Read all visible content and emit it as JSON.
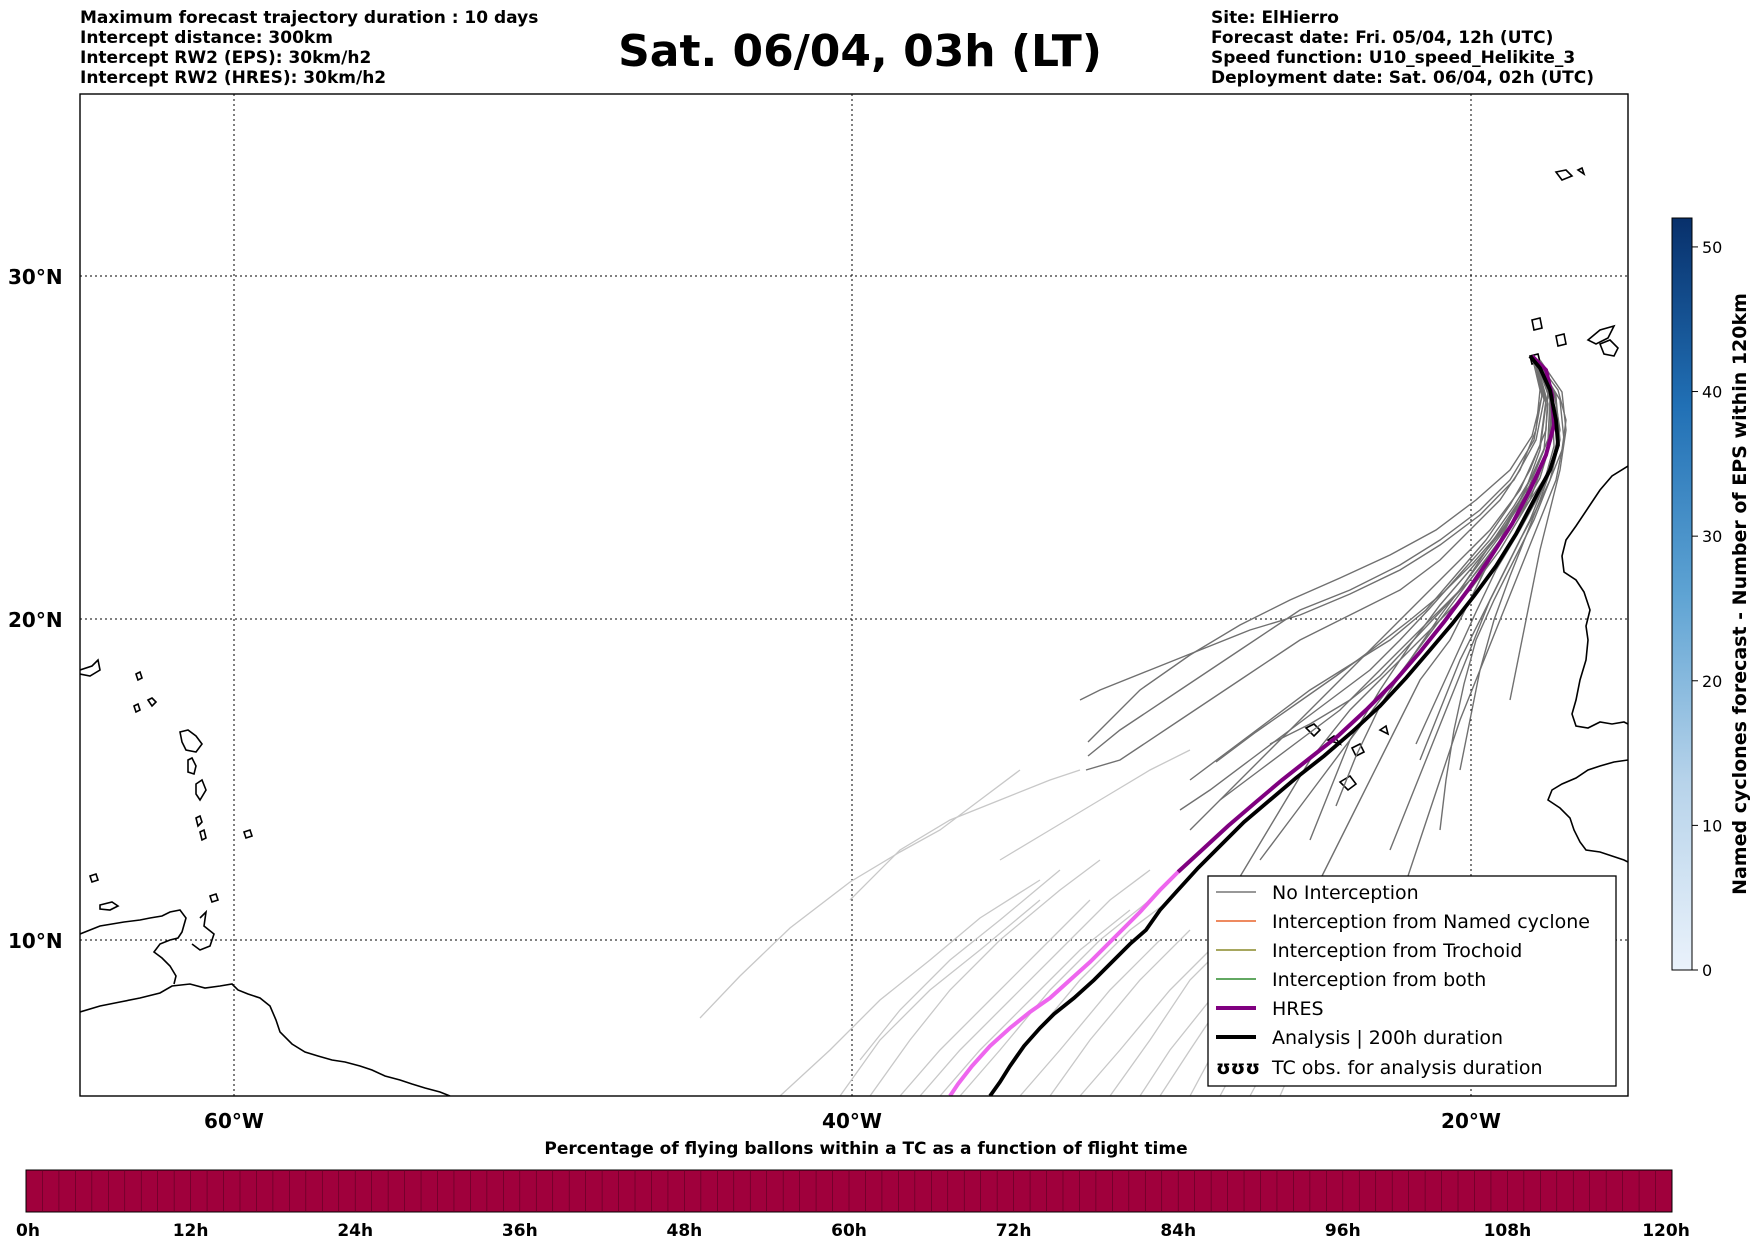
{
  "header": {
    "title": "Sat. 06/04, 03h (LT)",
    "left_lines": [
      "Maximum forecast trajectory duration : 10 days",
      "Intercept distance: 300km",
      "Intercept RW2 (EPS):  30km/h2",
      "Intercept RW2 (HRES): 30km/h2"
    ],
    "right_lines": [
      "Site: ElHierro",
      "Forecast date: Fri. 05/04, 12h (UTC)",
      "Speed function: U10_speed_Helikite_3",
      "Deployment date: Sat. 06/04, 02h (UTC)"
    ]
  },
  "map": {
    "lat_labels": [
      "30°N",
      "20°N",
      "10°N"
    ],
    "lon_labels": [
      "60°W",
      "40°W",
      "20°W"
    ]
  },
  "legend": {
    "items": [
      {
        "label": "No Interception",
        "color": "#777777"
      },
      {
        "label": "Interception from Named cyclone",
        "color": "#e8642c"
      },
      {
        "label": "Interception from Trochoid",
        "color": "#8a8a2a"
      },
      {
        "label": "Interception from both",
        "color": "#2e8b2e"
      },
      {
        "label": "HRES",
        "color": "#800080"
      },
      {
        "label": "Analysis | 200h duration",
        "color": "#000000"
      },
      {
        "label": "TC obs. for analysis duration",
        "symbol": "ʊʊʊ"
      }
    ]
  },
  "colorbar_right": {
    "label": "Named cyclones forecast - Number of EPS within 120km",
    "ticks": [
      "0",
      "10",
      "20",
      "30",
      "40",
      "50"
    ],
    "min": 0,
    "max": 52
  },
  "colorbar_bottom": {
    "title": "Percentage of flying ballons within a TC as a function of flight time",
    "ticks": [
      "0h",
      "12h",
      "24h",
      "36h",
      "48h",
      "60h",
      "72h",
      "84h",
      "96h",
      "108h",
      "120h"
    ],
    "color": "#a0003c"
  }
}
